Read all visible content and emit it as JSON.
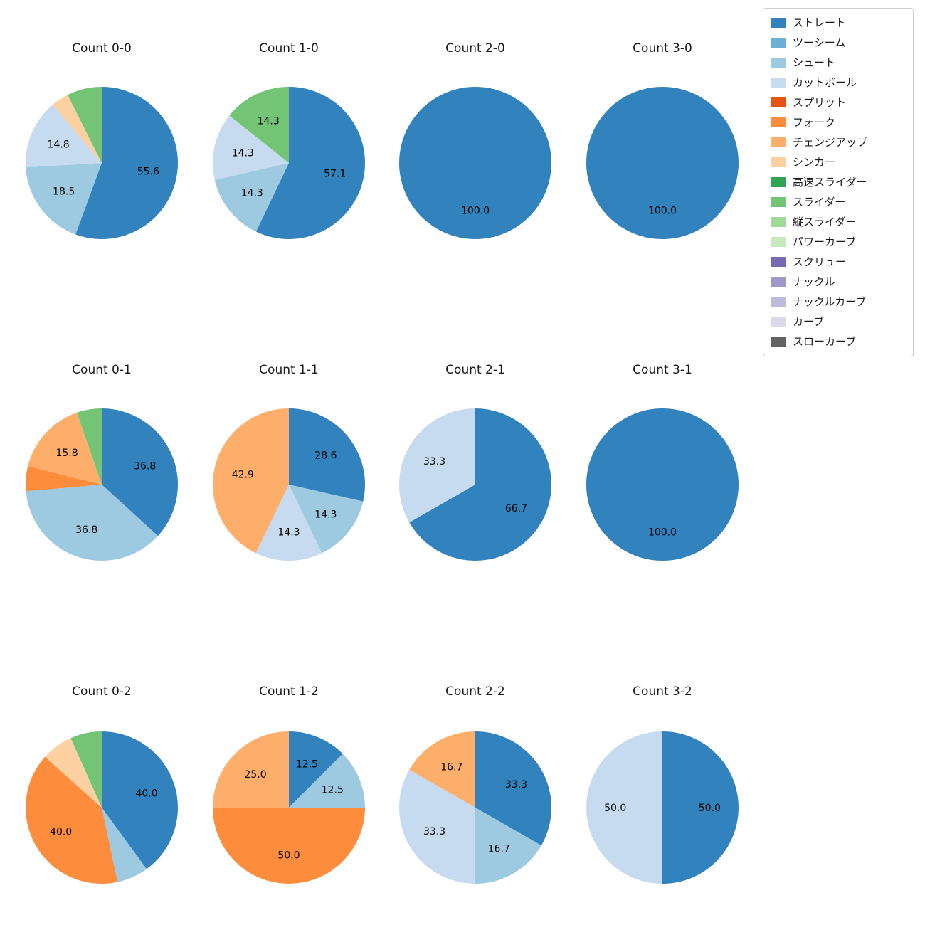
{
  "figure": {
    "background": "#ffffff"
  },
  "legend": {
    "items": [
      {
        "label": "ストレート",
        "color": "#3182bd"
      },
      {
        "label": "ツーシーム",
        "color": "#6baed6"
      },
      {
        "label": "シュート",
        "color": "#9ecae1"
      },
      {
        "label": "カットボール",
        "color": "#c6dbef"
      },
      {
        "label": "スプリット",
        "color": "#e6550d"
      },
      {
        "label": "フォーク",
        "color": "#fd8d3c"
      },
      {
        "label": "チェンジアップ",
        "color": "#fdae6b"
      },
      {
        "label": "シンカー",
        "color": "#fdd0a2"
      },
      {
        "label": "高速スライダー",
        "color": "#31a354"
      },
      {
        "label": "スライダー",
        "color": "#74c476"
      },
      {
        "label": "縦スライダー",
        "color": "#a1d99b"
      },
      {
        "label": "パワーカーブ",
        "color": "#c7e9c0"
      },
      {
        "label": "スクリュー",
        "color": "#756bb1"
      },
      {
        "label": "ナックル",
        "color": "#9e9ac8"
      },
      {
        "label": "ナックルカーブ",
        "color": "#bcbddc"
      },
      {
        "label": "カーブ",
        "color": "#dadaeb"
      },
      {
        "label": "スローカーブ",
        "color": "#636363"
      }
    ]
  },
  "chart_data": [
    {
      "type": "pie",
      "title": "Count 0-0",
      "slices": [
        {
          "label": "ストレート",
          "value": 55.6
        },
        {
          "label": "シュート",
          "value": 18.5
        },
        {
          "label": "カットボール",
          "value": 14.8
        },
        {
          "label": "シンカー",
          "value": 3.7
        },
        {
          "label": "スライダー",
          "value": 7.4
        }
      ]
    },
    {
      "type": "pie",
      "title": "Count 1-0",
      "slices": [
        {
          "label": "ストレート",
          "value": 57.1
        },
        {
          "label": "シュート",
          "value": 14.3
        },
        {
          "label": "カットボール",
          "value": 14.3
        },
        {
          "label": "スライダー",
          "value": 14.3
        }
      ]
    },
    {
      "type": "pie",
      "title": "Count 2-0",
      "slices": [
        {
          "label": "ストレート",
          "value": 100.0
        }
      ]
    },
    {
      "type": "pie",
      "title": "Count 3-0",
      "slices": [
        {
          "label": "ストレート",
          "value": 100.0
        }
      ]
    },
    {
      "type": "pie",
      "title": "Count 0-1",
      "slices": [
        {
          "label": "ストレート",
          "value": 36.8
        },
        {
          "label": "シュート",
          "value": 36.8
        },
        {
          "label": "フォーク",
          "value": 5.3
        },
        {
          "label": "チェンジアップ",
          "value": 15.8
        },
        {
          "label": "スライダー",
          "value": 5.3
        }
      ]
    },
    {
      "type": "pie",
      "title": "Count 1-1",
      "slices": [
        {
          "label": "ストレート",
          "value": 28.6
        },
        {
          "label": "シュート",
          "value": 14.3
        },
        {
          "label": "カットボール",
          "value": 14.3
        },
        {
          "label": "チェンジアップ",
          "value": 42.9
        }
      ]
    },
    {
      "type": "pie",
      "title": "Count 2-1",
      "slices": [
        {
          "label": "ストレート",
          "value": 66.7
        },
        {
          "label": "カットボール",
          "value": 33.3
        }
      ]
    },
    {
      "type": "pie",
      "title": "Count 3-1",
      "slices": [
        {
          "label": "ストレート",
          "value": 100.0
        }
      ]
    },
    {
      "type": "pie",
      "title": "Count 0-2",
      "slices": [
        {
          "label": "ストレート",
          "value": 40.0
        },
        {
          "label": "シュート",
          "value": 6.7
        },
        {
          "label": "フォーク",
          "value": 40.0
        },
        {
          "label": "シンカー",
          "value": 6.7
        },
        {
          "label": "スライダー",
          "value": 6.7
        }
      ]
    },
    {
      "type": "pie",
      "title": "Count 1-2",
      "slices": [
        {
          "label": "ストレート",
          "value": 12.5
        },
        {
          "label": "シュート",
          "value": 12.5
        },
        {
          "label": "フォーク",
          "value": 50.0
        },
        {
          "label": "チェンジアップ",
          "value": 25.0
        }
      ]
    },
    {
      "type": "pie",
      "title": "Count 2-2",
      "slices": [
        {
          "label": "ストレート",
          "value": 33.3
        },
        {
          "label": "シュート",
          "value": 16.7
        },
        {
          "label": "カットボール",
          "value": 33.3
        },
        {
          "label": "チェンジアップ",
          "value": 16.7
        }
      ]
    },
    {
      "type": "pie",
      "title": "Count 3-2",
      "slices": [
        {
          "label": "ストレート",
          "value": 50.0
        },
        {
          "label": "カットボール",
          "value": 50.0
        }
      ]
    }
  ]
}
